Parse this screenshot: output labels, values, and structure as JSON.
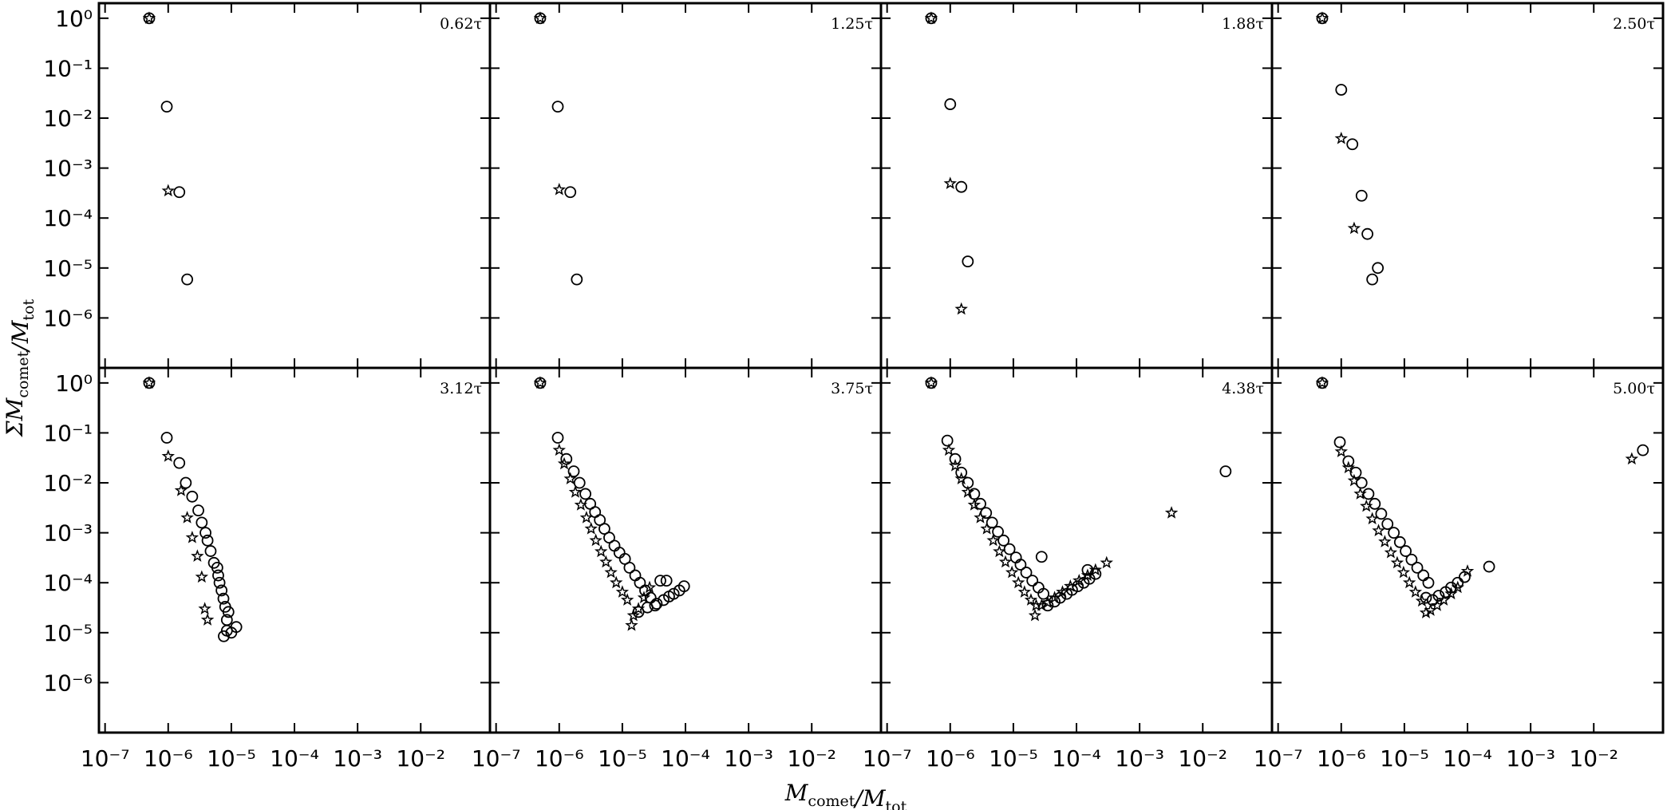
{
  "axes": {
    "xlabel": "M_comet/M_tot",
    "ylabel": "ΣM_comet/M_tot",
    "xscale": "log",
    "yscale": "log",
    "xlim": [
      8e-08,
      0.125
    ],
    "ylim": [
      1e-07,
      2
    ],
    "xticks": [
      {
        "value": 1e-07,
        "label": "10⁻⁷"
      },
      {
        "value": 1e-06,
        "label": "10⁻⁶"
      },
      {
        "value": 1e-05,
        "label": "10⁻⁵"
      },
      {
        "value": 0.0001,
        "label": "10⁻⁴"
      },
      {
        "value": 0.001,
        "label": "10⁻³"
      },
      {
        "value": 0.01,
        "label": "10⁻²"
      }
    ],
    "yticks": [
      {
        "value": 1,
        "label": "10⁰"
      },
      {
        "value": 0.1,
        "label": "10⁻¹"
      },
      {
        "value": 0.01,
        "label": "10⁻²"
      },
      {
        "value": 0.001,
        "label": "10⁻³"
      },
      {
        "value": 0.0001,
        "label": "10⁻⁴"
      },
      {
        "value": 1e-05,
        "label": "10⁻⁵"
      },
      {
        "value": 1e-06,
        "label": "10⁻⁶"
      }
    ]
  },
  "chart_data": [
    {
      "type": "scatter",
      "annotation": "0.62τ",
      "series": [
        {
          "marker": "circle",
          "color": "#000000",
          "x": [
            5e-07,
            9.5e-07,
            1.5e-06,
            2e-06
          ],
          "values": [
            1,
            0.017,
            0.00033,
            5.9e-06
          ]
        },
        {
          "marker": "star",
          "color": "#000000",
          "x": [
            5e-07,
            1e-06
          ],
          "values": [
            1,
            0.00035
          ]
        }
      ]
    },
    {
      "type": "scatter",
      "annotation": "1.25τ",
      "series": [
        {
          "marker": "circle",
          "color": "#000000",
          "x": [
            5e-07,
            9.5e-07,
            1.5e-06,
            1.9e-06
          ],
          "values": [
            1,
            0.017,
            0.00033,
            5.9e-06
          ]
        },
        {
          "marker": "star",
          "color": "#000000",
          "x": [
            5e-07,
            1e-06
          ],
          "values": [
            1,
            0.00037
          ]
        }
      ]
    },
    {
      "type": "scatter",
      "annotation": "1.88τ",
      "series": [
        {
          "marker": "circle",
          "color": "#000000",
          "x": [
            5e-07,
            1e-06,
            1.5e-06,
            1.9e-06
          ],
          "values": [
            1,
            0.019,
            0.00042,
            1.35e-05
          ]
        },
        {
          "marker": "star",
          "color": "#000000",
          "x": [
            5e-07,
            1e-06,
            1.5e-06
          ],
          "values": [
            1,
            0.00049,
            1.5e-06
          ]
        }
      ]
    },
    {
      "type": "scatter",
      "annotation": "2.50τ",
      "series": [
        {
          "marker": "circle",
          "color": "#000000",
          "x": [
            5e-07,
            1e-06,
            1.5e-06,
            2.1e-06,
            2.6e-06,
            3.8e-06,
            3.1e-06
          ],
          "values": [
            1,
            0.037,
            0.003,
            0.00028,
            4.8e-05,
            1e-05,
            5.9e-06
          ]
        },
        {
          "marker": "star",
          "color": "#000000",
          "x": [
            5e-07,
            1e-06,
            1.6e-06
          ],
          "values": [
            1,
            0.0039,
            6.2e-05
          ]
        }
      ]
    },
    {
      "type": "scatter",
      "annotation": "3.12τ",
      "series": [
        {
          "marker": "circle",
          "color": "#000000",
          "x": [
            5e-07,
            9.5e-07,
            1.5e-06,
            1.9e-06,
            2.4e-06,
            3e-06,
            3.4e-06,
            3.9e-06,
            4.2e-06,
            4.7e-06,
            5.3e-06,
            6e-06,
            6.2e-06,
            6.5e-06,
            7e-06,
            7.5e-06,
            8e-06,
            9e-06,
            8.5e-06,
            8.5e-06,
            7.6e-06,
            1e-05,
            1.2e-05
          ],
          "values": [
            1,
            0.08,
            0.025,
            0.01,
            0.0053,
            0.0028,
            0.0016,
            0.001,
            0.0007,
            0.00043,
            0.00025,
            0.0002,
            0.00014,
            0.0001,
            7e-05,
            4.8e-05,
            3.3e-05,
            2.6e-05,
            1.8e-05,
            1.1e-05,
            8.5e-06,
            1e-05,
            1.3e-05
          ]
        },
        {
          "marker": "star",
          "color": "#000000",
          "x": [
            5e-07,
            1e-06,
            1.6e-06,
            2e-06,
            2.4e-06,
            2.9e-06,
            3.4e-06,
            3.8e-06,
            4.2e-06
          ],
          "values": [
            1,
            0.034,
            0.007,
            0.002,
            0.0008,
            0.00034,
            0.00013,
            3e-05,
            1.8e-05
          ]
        }
      ]
    },
    {
      "type": "scatter",
      "annotation": "3.75τ",
      "series": [
        {
          "marker": "circle",
          "color": "#000000",
          "x": [
            5e-07,
            9.5e-07,
            1.3e-06,
            1.7e-06,
            2.1e-06,
            2.6e-06,
            3.1e-06,
            3.7e-06,
            4.4e-06,
            5.2e-06,
            6.2e-06,
            7.5e-06,
            9e-06,
            1.1e-05,
            1.3e-05,
            1.6e-05,
            1.9e-05,
            2.3e-05,
            2.8e-05,
            3.3e-05,
            1.8e-05,
            2.5e-05,
            3.5e-05,
            4.5e-05,
            5.5e-05,
            6.5e-05,
            8e-05,
            9.5e-05,
            4e-05,
            5e-05
          ],
          "values": [
            1,
            0.08,
            0.03,
            0.017,
            0.01,
            0.006,
            0.0038,
            0.0026,
            0.0018,
            0.0012,
            0.0008,
            0.00055,
            0.0004,
            0.0003,
            0.0002,
            0.00014,
            0.0001,
            7e-05,
            5e-05,
            3.5e-05,
            2.6e-05,
            3.2e-05,
            3.8e-05,
            4.5e-05,
            5.3e-05,
            6e-05,
            7e-05,
            8.5e-05,
            0.00011,
            0.00011
          ]
        },
        {
          "marker": "star",
          "color": "#000000",
          "x": [
            5e-07,
            1e-06,
            1.2e-06,
            1.5e-06,
            1.8e-06,
            2.2e-06,
            2.7e-06,
            3.2e-06,
            3.8e-06,
            4.6e-06,
            5.5e-06,
            6.6e-06,
            8e-06,
            1e-05,
            1.2e-05,
            1.4e-05,
            1.5e-05,
            1.8e-05,
            2.2e-05,
            2.7e-05
          ],
          "values": [
            1,
            0.045,
            0.024,
            0.012,
            0.0065,
            0.0036,
            0.002,
            0.0012,
            0.0007,
            0.00042,
            0.00026,
            0.00016,
            0.0001,
            6.5e-05,
            4.5e-05,
            1.4e-05,
            2.2e-05,
            3e-05,
            5e-05,
            8e-05
          ]
        }
      ]
    },
    {
      "type": "scatter",
      "annotation": "4.38τ",
      "series": [
        {
          "marker": "circle",
          "color": "#000000",
          "x": [
            5e-07,
            9e-07,
            1.2e-06,
            1.5e-06,
            1.9e-06,
            2.4e-06,
            3e-06,
            3.7e-06,
            4.6e-06,
            5.7e-06,
            7e-06,
            8.7e-06,
            1.1e-05,
            1.3e-05,
            1.6e-05,
            2e-05,
            2.5e-05,
            3e-05,
            2.8e-05,
            3.5e-05,
            4.5e-05,
            5.5e-05,
            7e-05,
            8.5e-05,
            0.000105,
            0.00013,
            0.00016,
            0.0002,
            0.00015,
            0.023
          ],
          "values": [
            1,
            0.07,
            0.03,
            0.016,
            0.01,
            0.006,
            0.0038,
            0.0025,
            0.0016,
            0.00105,
            0.0007,
            0.00047,
            0.00032,
            0.00023,
            0.00016,
            0.00011,
            8e-05,
            6e-05,
            0.00033,
            3.5e-05,
            4.2e-05,
            5e-05,
            6e-05,
            7.2e-05,
            8.5e-05,
            0.0001,
            0.00012,
            0.00015,
            0.00018,
            0.017
          ]
        },
        {
          "marker": "star",
          "color": "#000000",
          "x": [
            5e-07,
            9.5e-07,
            1.2e-06,
            1.5e-06,
            1.9e-06,
            2.4e-06,
            3e-06,
            3.8e-06,
            4.8e-06,
            6e-06,
            7.5e-06,
            9.5e-06,
            1.2e-05,
            1.5e-05,
            1.9e-05,
            2.3e-05,
            2.2e-05,
            2.8e-05,
            3.5e-05,
            4.5e-05,
            6e-05,
            8e-05,
            0.00011,
            0.00015,
            0.0002,
            0.0003,
            0.0032
          ],
          "values": [
            1,
            0.045,
            0.022,
            0.012,
            0.0065,
            0.0036,
            0.002,
            0.0012,
            0.0007,
            0.00042,
            0.00026,
            0.00016,
            0.0001,
            6.5e-05,
            4.5e-05,
            3.5e-05,
            2.2e-05,
            3.5e-05,
            4e-05,
            5e-05,
            6.5e-05,
            8.5e-05,
            0.00011,
            0.00014,
            0.00018,
            0.00025,
            0.0025
          ]
        }
      ]
    },
    {
      "type": "scatter",
      "annotation": "5.00τ",
      "series": [
        {
          "marker": "circle",
          "color": "#000000",
          "x": [
            5e-07,
            9.5e-07,
            1.3e-06,
            1.7e-06,
            2.1e-06,
            2.7e-06,
            3.4e-06,
            4.3e-06,
            5.4e-06,
            6.8e-06,
            8.5e-06,
            1.05e-05,
            1.3e-05,
            1.6e-05,
            2e-05,
            2.4e-05,
            2.2e-05,
            2.8e-05,
            3.5e-05,
            4.5e-05,
            5.5e-05,
            7e-05,
            9e-05,
            0.00022,
            0.06
          ],
          "values": [
            1,
            0.065,
            0.027,
            0.016,
            0.01,
            0.006,
            0.0038,
            0.0024,
            0.0015,
            0.001,
            0.00065,
            0.00043,
            0.00029,
            0.0002,
            0.00014,
            0.0001,
            5e-05,
            4.5e-05,
            5.5e-05,
            6.5e-05,
            8e-05,
            0.0001,
            0.00013,
            0.00021,
            0.045
          ]
        },
        {
          "marker": "star",
          "color": "#000000",
          "x": [
            5e-07,
            1e-06,
            1.3e-06,
            1.6e-06,
            2e-06,
            2.5e-06,
            3.1e-06,
            3.9e-06,
            4.9e-06,
            6.1e-06,
            7.7e-06,
            9.7e-06,
            1.2e-05,
            1.5e-05,
            1.9e-05,
            2.2e-05,
            2.6e-05,
            3.3e-05,
            4.2e-05,
            5.5e-05,
            7e-05,
            0.0001,
            0.04
          ],
          "values": [
            1,
            0.042,
            0.02,
            0.011,
            0.006,
            0.0034,
            0.0019,
            0.0011,
            0.00066,
            0.0004,
            0.00025,
            0.00016,
            0.0001,
            6.5e-05,
            4.3e-05,
            2.5e-05,
            2.8e-05,
            3.5e-05,
            4.5e-05,
            6e-05,
            8e-05,
            0.00017,
            0.03
          ]
        }
      ]
    }
  ]
}
